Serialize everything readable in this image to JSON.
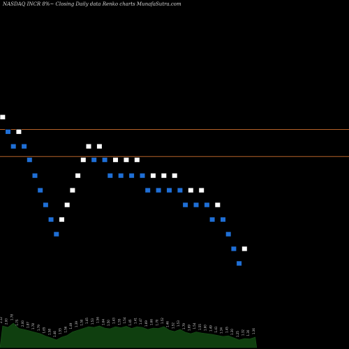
{
  "title": "NASDAQ INCR 8%~  Closing Daily data  Renko  charts MunafaSutra.com",
  "colors": {
    "background": "#000000",
    "up_brick": "#ffffff",
    "down_brick": "#1f6fd6",
    "line": "#b5622a",
    "volume_fill": "#0f3f0f"
  },
  "chart_data": {
    "type": "renko",
    "title": "NASDAQ INCR 8%~  Closing Daily data  Renko  charts MunafaSutra.com",
    "y_range": [
      0.2,
      3.3
    ],
    "reference_lines": [
      2.15,
      1.91
    ],
    "bricks": [
      {
        "dir": "up",
        "level": 2.26
      },
      {
        "dir": "down",
        "level": 2.13
      },
      {
        "dir": "down",
        "level": 2.0
      },
      {
        "dir": "up",
        "level": 2.13
      },
      {
        "dir": "down",
        "level": 2.0
      },
      {
        "dir": "down",
        "level": 1.88
      },
      {
        "dir": "down",
        "level": 1.74
      },
      {
        "dir": "down",
        "level": 1.61
      },
      {
        "dir": "down",
        "level": 1.48
      },
      {
        "dir": "down",
        "level": 1.35
      },
      {
        "dir": "down",
        "level": 1.22
      },
      {
        "dir": "up",
        "level": 1.35
      },
      {
        "dir": "up",
        "level": 1.48
      },
      {
        "dir": "up",
        "level": 1.61
      },
      {
        "dir": "up",
        "level": 1.74
      },
      {
        "dir": "up",
        "level": 1.88
      },
      {
        "dir": "up",
        "level": 2.0
      },
      {
        "dir": "down",
        "level": 1.88
      },
      {
        "dir": "up",
        "level": 2.0
      },
      {
        "dir": "down",
        "level": 1.88
      },
      {
        "dir": "down",
        "level": 1.74
      },
      {
        "dir": "up",
        "level": 1.88
      },
      {
        "dir": "down",
        "level": 1.74
      },
      {
        "dir": "up",
        "level": 1.88
      },
      {
        "dir": "down",
        "level": 1.74
      },
      {
        "dir": "up",
        "level": 1.88
      },
      {
        "dir": "down",
        "level": 1.74
      },
      {
        "dir": "down",
        "level": 1.61
      },
      {
        "dir": "up",
        "level": 1.74
      },
      {
        "dir": "down",
        "level": 1.61
      },
      {
        "dir": "up",
        "level": 1.74
      },
      {
        "dir": "down",
        "level": 1.61
      },
      {
        "dir": "up",
        "level": 1.74
      },
      {
        "dir": "down",
        "level": 1.61
      },
      {
        "dir": "down",
        "level": 1.48
      },
      {
        "dir": "up",
        "level": 1.61
      },
      {
        "dir": "down",
        "level": 1.48
      },
      {
        "dir": "up",
        "level": 1.61
      },
      {
        "dir": "down",
        "level": 1.48
      },
      {
        "dir": "down",
        "level": 1.35
      },
      {
        "dir": "up",
        "level": 1.48
      },
      {
        "dir": "down",
        "level": 1.35
      },
      {
        "dir": "down",
        "level": 1.22
      },
      {
        "dir": "down",
        "level": 1.09
      },
      {
        "dir": "down",
        "level": 0.96
      },
      {
        "dir": "up",
        "level": 1.09
      }
    ],
    "brick_labels": [
      "2.12",
      "2.00",
      "1.78",
      "1.75",
      "2.00",
      "1.87",
      "1.78",
      "1.79",
      "1.65",
      "1.58",
      "1.46",
      "1.55",
      "1.56",
      "1.49",
      "1.39",
      "1.50",
      "1.45",
      "1.53",
      "1.56",
      "1.64",
      "1.50",
      "1.43",
      "1.55",
      "1.54",
      "1.45",
      "1.41",
      "1.47",
      "1.69",
      "1.66",
      "1.70",
      "1.52",
      "1.46",
      "1.52",
      "1.53",
      "1.79",
      "1.69",
      "1.54",
      "1.55",
      "1.60",
      "1.49",
      "1.41",
      "1.34",
      "1.45",
      "1.30",
      "1.25",
      "1.32",
      "1.30",
      "1.36"
    ],
    "volume_profile": [
      0.62,
      0.58,
      0.7,
      0.55,
      0.52,
      0.48,
      0.44,
      0.4,
      0.33,
      0.28,
      0.22,
      0.3,
      0.35,
      0.45,
      0.5,
      0.55,
      0.6,
      0.58,
      0.62,
      0.56,
      0.54,
      0.6,
      0.57,
      0.61,
      0.55,
      0.6,
      0.58,
      0.52,
      0.56,
      0.55,
      0.6,
      0.5,
      0.46,
      0.52,
      0.44,
      0.4,
      0.45,
      0.42,
      0.4,
      0.38,
      0.35,
      0.32,
      0.34,
      0.28,
      0.22,
      0.26,
      0.25,
      0.3
    ]
  }
}
